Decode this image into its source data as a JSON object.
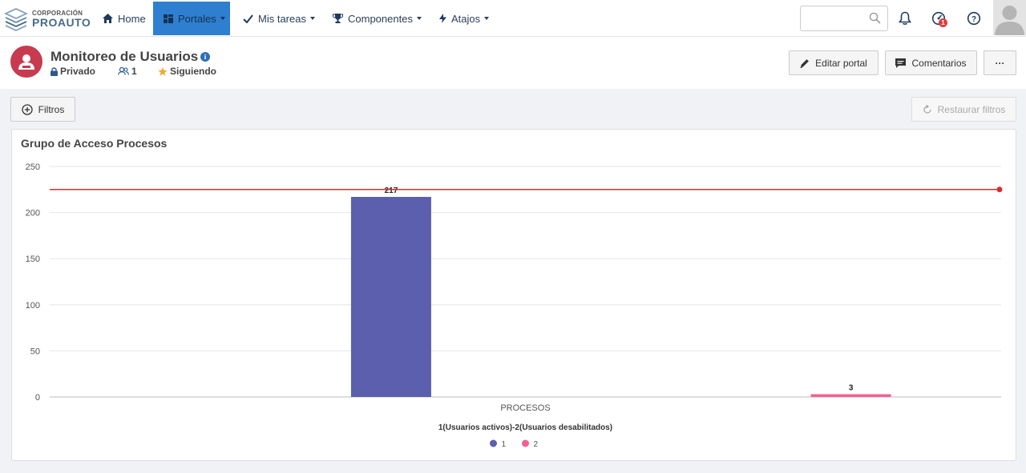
{
  "header": {
    "logo_line1": "CORPORACIÓN",
    "logo_line2": "PROAUTO",
    "nav": [
      {
        "label": "Home",
        "icon": "home-icon"
      },
      {
        "label": "Portales",
        "icon": "grid-icon",
        "active": true
      },
      {
        "label": "Mis tareas",
        "icon": "check-icon"
      },
      {
        "label": "Componentes",
        "icon": "trophy-icon"
      },
      {
        "label": "Atajos",
        "icon": "bolt-icon"
      }
    ],
    "search": {
      "placeholder": "",
      "value": ""
    },
    "notifications_badge": "1"
  },
  "portal": {
    "title": "Monitoreo de Usuarios",
    "privacy": "Privado",
    "members": "1",
    "following": "Siguiendo",
    "edit_label": "Editar portal",
    "comments_label": "Comentarios",
    "more_label": "···"
  },
  "filters": {
    "filter_label": "Filtros",
    "restore_label": "Restaurar filtros"
  },
  "chart_title": "Grupo de Acceso Procesos",
  "chart_data": {
    "type": "bar",
    "title": "Grupo de Acceso Procesos",
    "categories": [
      "PROCESOS"
    ],
    "series": [
      {
        "name": "1",
        "values": [
          217
        ],
        "color": "#5b5fad"
      },
      {
        "name": "2",
        "values": [
          3
        ],
        "color": "#f06292"
      }
    ],
    "xlabel": "1(Usuarios activos)-2(Usuarios desabilitados)",
    "ylabel": "",
    "ylim": [
      0,
      250
    ],
    "yticks": [
      0,
      50,
      100,
      150,
      200,
      250
    ],
    "reference_line": {
      "value": 225,
      "color": "#d32f2f"
    },
    "grid": true,
    "legend": "bottom"
  }
}
